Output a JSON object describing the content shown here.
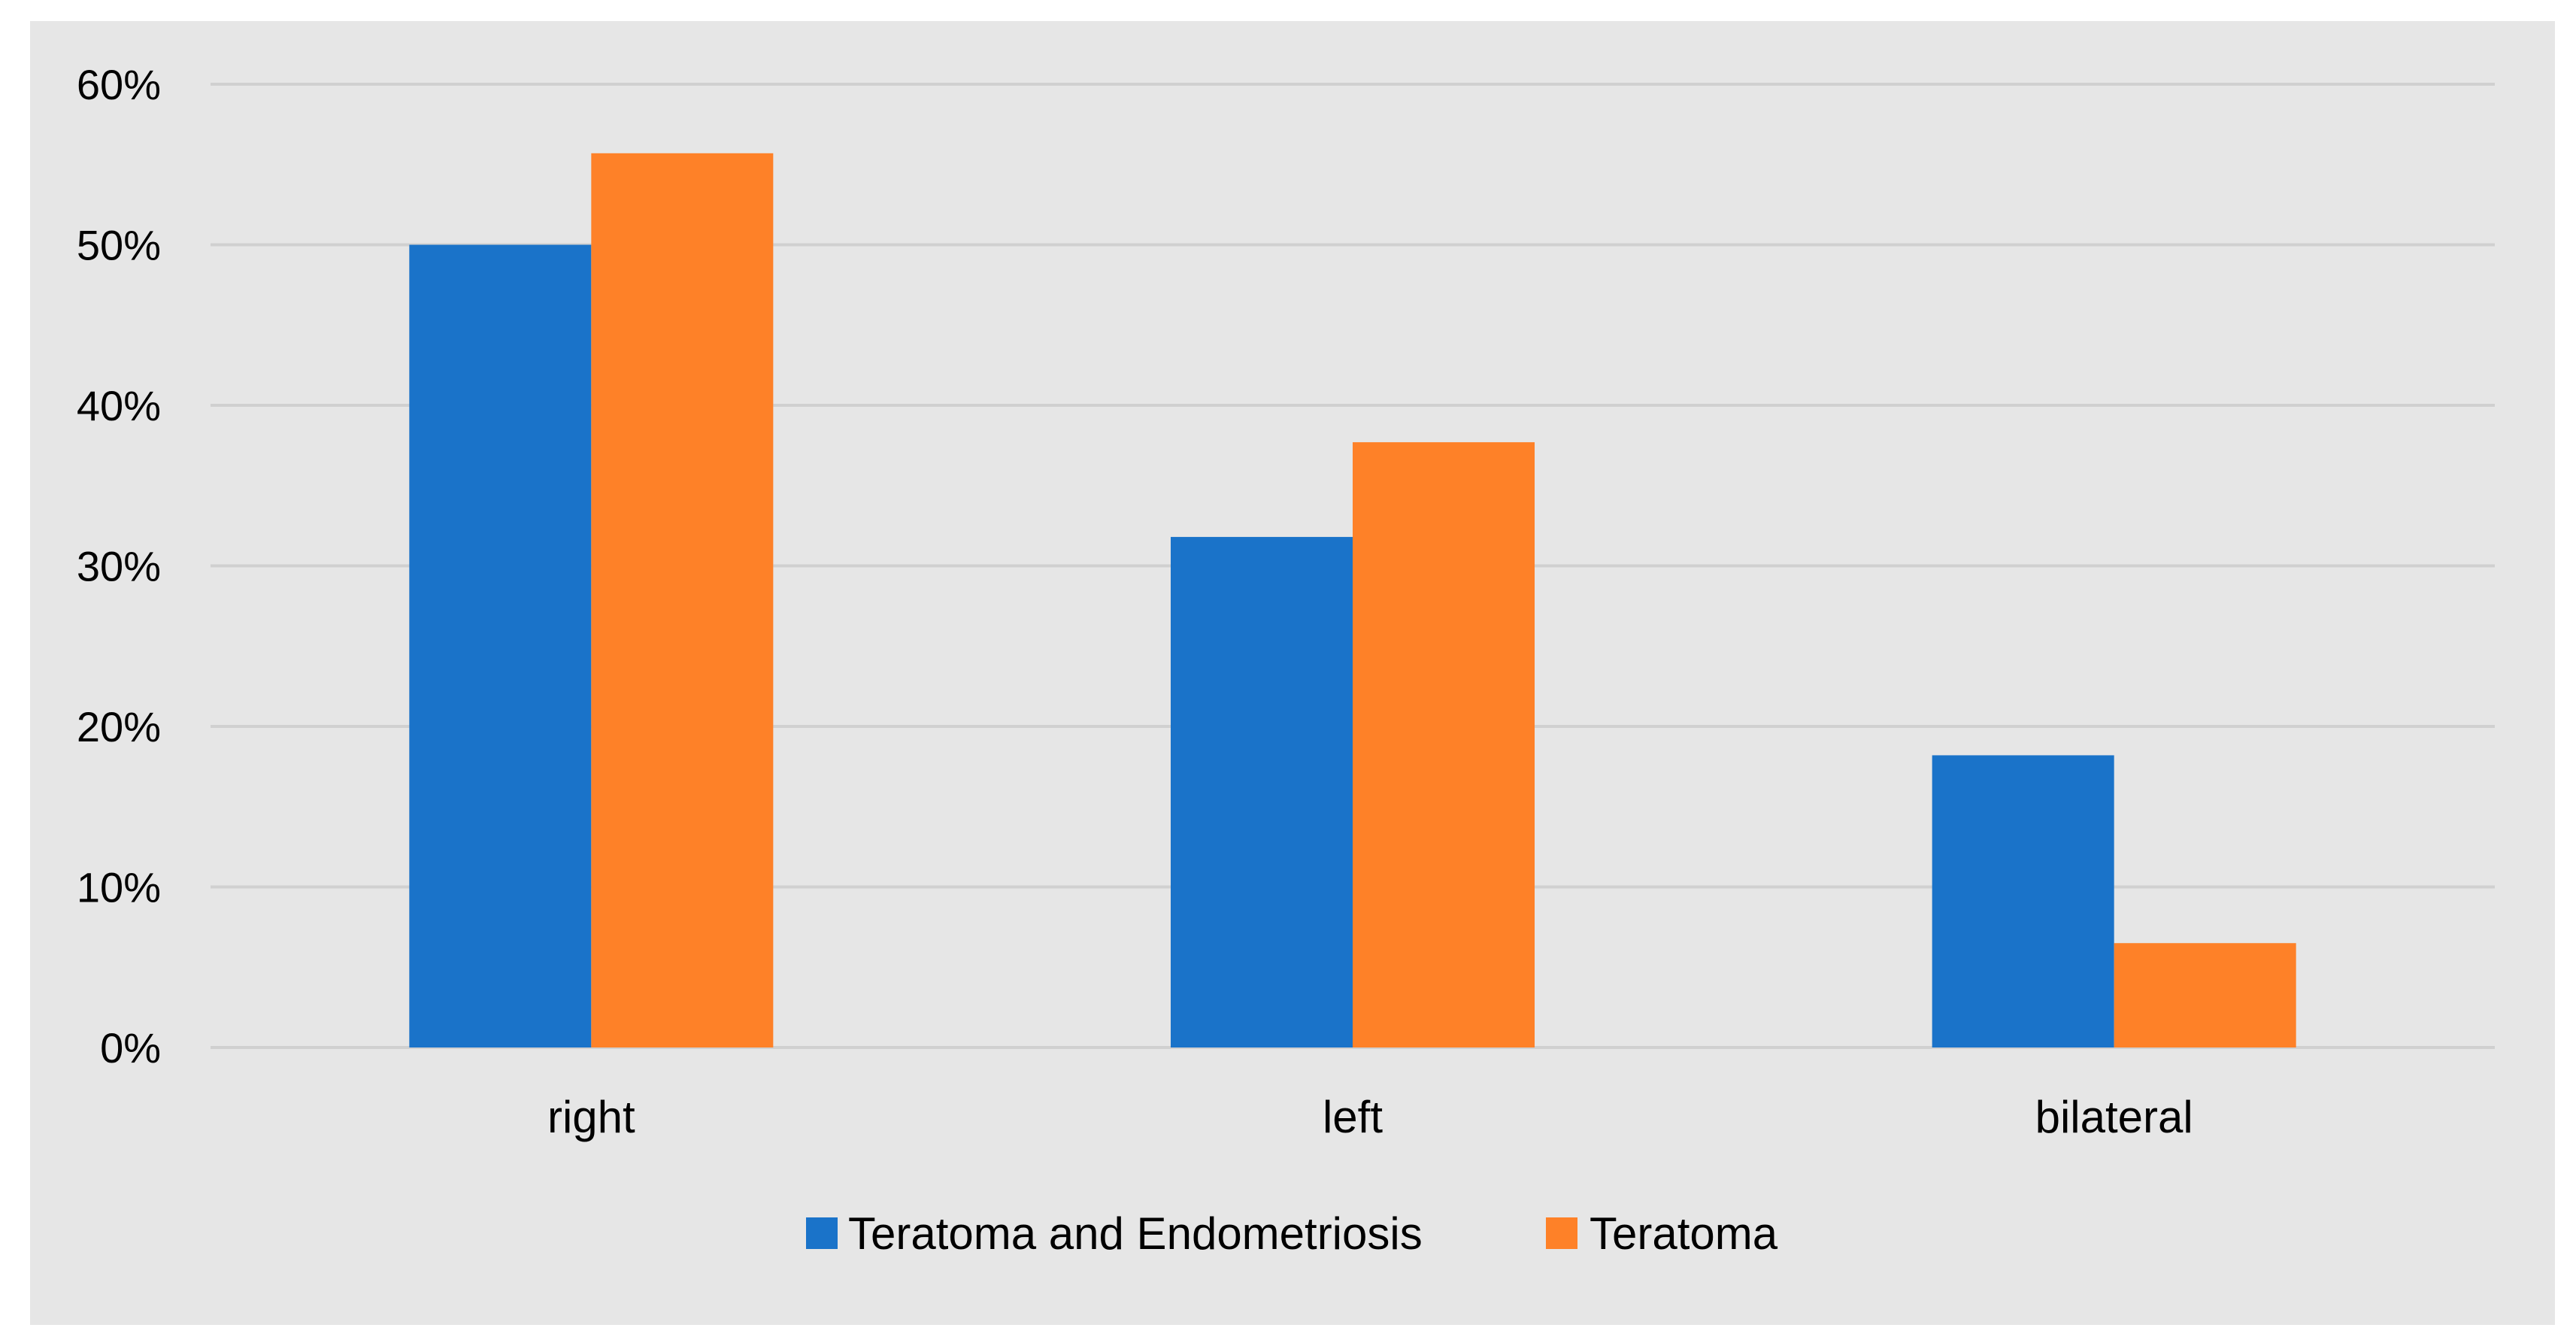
{
  "chart_data": {
    "type": "bar",
    "categories": [
      "right",
      "left",
      "bilateral"
    ],
    "series": [
      {
        "name": "Teratoma and Endometriosis",
        "color": "#1A73C9",
        "values": [
          0.5,
          0.318,
          0.182
        ]
      },
      {
        "name": "Teratoma",
        "color": "#FE8128",
        "values": [
          0.557,
          0.377,
          0.065
        ]
      }
    ],
    "yticks": [
      {
        "value": 0,
        "label": "0%"
      },
      {
        "value": 0.1,
        "label": "10%"
      },
      {
        "value": 0.2,
        "label": "20%"
      },
      {
        "value": 0.3,
        "label": "30%"
      },
      {
        "value": 0.4,
        "label": "40%"
      },
      {
        "value": 0.5,
        "label": "50%"
      },
      {
        "value": 0.6,
        "label": "60%"
      }
    ],
    "ylim": [
      0,
      0.6
    ],
    "title": "",
    "xlabel": "",
    "ylabel": "",
    "grid": true,
    "legend_position": "bottom",
    "background_color": "#E6E6E6",
    "gridline_color": "#D0D0D0"
  }
}
